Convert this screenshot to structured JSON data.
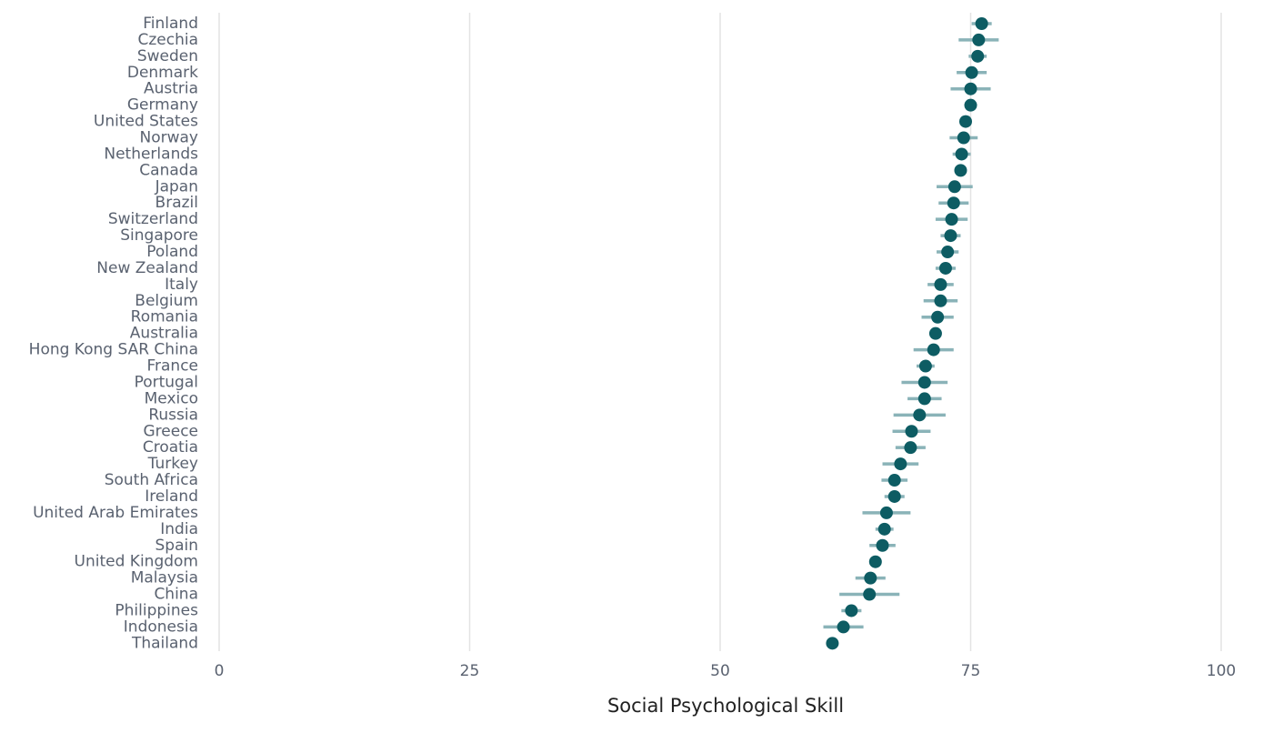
{
  "chart_data": {
    "type": "dot",
    "x_label": "Social Psychological Skill",
    "categories": [
      "Finland",
      "Czechia",
      "Sweden",
      "Denmark",
      "Austria",
      "Germany",
      "United States",
      "Norway",
      "Netherlands",
      "Canada",
      "Japan",
      "Brazil",
      "Switzerland",
      "Singapore",
      "Poland",
      "New Zealand",
      "Italy",
      "Belgium",
      "Romania",
      "Australia",
      "Hong Kong SAR China",
      "France",
      "Portugal",
      "Mexico",
      "Russia",
      "Greece",
      "Croatia",
      "Turkey",
      "South Africa",
      "Ireland",
      "United Arab Emirates",
      "India",
      "Spain",
      "United Kingdom",
      "Malaysia",
      "China",
      "Philippines",
      "Indonesia",
      "Thailand"
    ],
    "values": [
      76.1,
      75.8,
      75.7,
      75.1,
      75.0,
      75.0,
      74.5,
      74.3,
      74.1,
      74.0,
      73.4,
      73.3,
      73.1,
      73.0,
      72.7,
      72.5,
      72.0,
      72.0,
      71.7,
      71.5,
      71.3,
      70.5,
      70.4,
      70.4,
      69.9,
      69.1,
      69.0,
      68.0,
      67.4,
      67.4,
      66.6,
      66.4,
      66.2,
      65.5,
      65.0,
      64.9,
      63.1,
      62.3,
      61.2
    ],
    "errors": [
      1.0,
      2.0,
      0.9,
      1.5,
      2.0,
      0.5,
      0.3,
      1.4,
      0.9,
      0.5,
      1.8,
      1.5,
      1.6,
      1.0,
      1.1,
      1.0,
      1.3,
      1.7,
      1.6,
      0.5,
      2.0,
      0.9,
      2.3,
      1.7,
      2.6,
      1.9,
      1.5,
      1.8,
      1.3,
      1.0,
      2.4,
      0.9,
      1.3,
      0.3,
      1.5,
      3.0,
      1.0,
      2.0,
      0.3
    ],
    "color": "#0d5c63",
    "error_color": "#8ab3b8",
    "xlim": [
      0,
      100
    ],
    "xticks": [
      0,
      25,
      50,
      75,
      100
    ],
    "grid": true
  }
}
